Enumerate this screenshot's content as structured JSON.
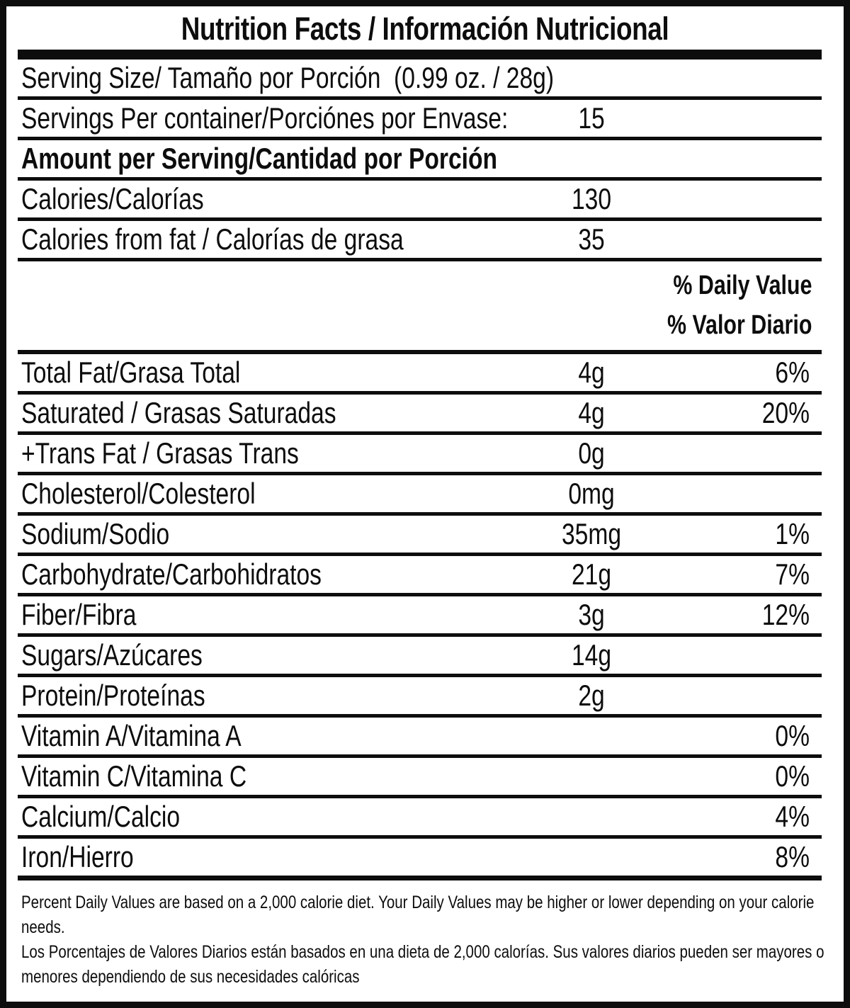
{
  "label": {
    "title": "Nutrition Facts / Información Nutricional",
    "colors": {
      "ink": "#0d0d0d",
      "background": "#ffffff"
    },
    "top_rows": [
      {
        "label": "Serving Size/ Tamaño por Porción  (0.99 oz. / 28g)",
        "value": "",
        "pct": ""
      },
      {
        "label": "Servings Per container/Porciónes por Envase:",
        "value": "15",
        "pct": ""
      },
      {
        "label": "Amount per Serving/Cantidad por Porción",
        "value": "",
        "pct": ""
      },
      {
        "label": "Calories/Calorías",
        "value": "130",
        "pct": ""
      },
      {
        "label": "Calories from fat / Calorías de grasa",
        "value": "35",
        "pct": ""
      }
    ],
    "daily_value_header": {
      "en": "% Daily Value",
      "es": "% Valor Diario"
    },
    "nutrient_rows": [
      {
        "label": "Total Fat/Grasa Total",
        "value": "4g",
        "pct": "6%"
      },
      {
        "label": "Saturated / Grasas Saturadas",
        "value": "4g",
        "pct": "20%"
      },
      {
        "label": "+Trans Fat / Grasas Trans",
        "value": "0g",
        "pct": ""
      },
      {
        "label": "Cholesterol/Colesterol",
        "value": "0mg",
        "pct": ""
      },
      {
        "label": "Sodium/Sodio",
        "value": "35mg",
        "pct": "1%"
      },
      {
        "label": "Carbohydrate/Carbohidratos",
        "value": "21g",
        "pct": "7%"
      },
      {
        "label": "Fiber/Fibra",
        "value": "3g",
        "pct": "12%"
      },
      {
        "label": "Sugars/Azúcares",
        "value": "14g",
        "pct": ""
      },
      {
        "label": "Protein/Proteínas",
        "value": "2g",
        "pct": ""
      },
      {
        "label": "Vitamin A/Vitamina A",
        "value": "",
        "pct": "0%"
      },
      {
        "label": "Vitamin C/Vitamina C",
        "value": "",
        "pct": "0%"
      },
      {
        "label": "Calcium/Calcio",
        "value": "",
        "pct": "4%"
      },
      {
        "label": "Iron/Hierro",
        "value": "",
        "pct": "8%"
      }
    ],
    "footnotes": {
      "en": "Percent Daily Values are based on a 2,000 calorie diet. Your Daily Values may be higher or lower depending on your calorie needs.",
      "es": "Los Porcentajes de Valores Diarios están basados en una dieta de 2,000 calorías. Sus valores diarios pueden ser mayores o menores dependiendo de sus necesidades calóricas"
    }
  }
}
